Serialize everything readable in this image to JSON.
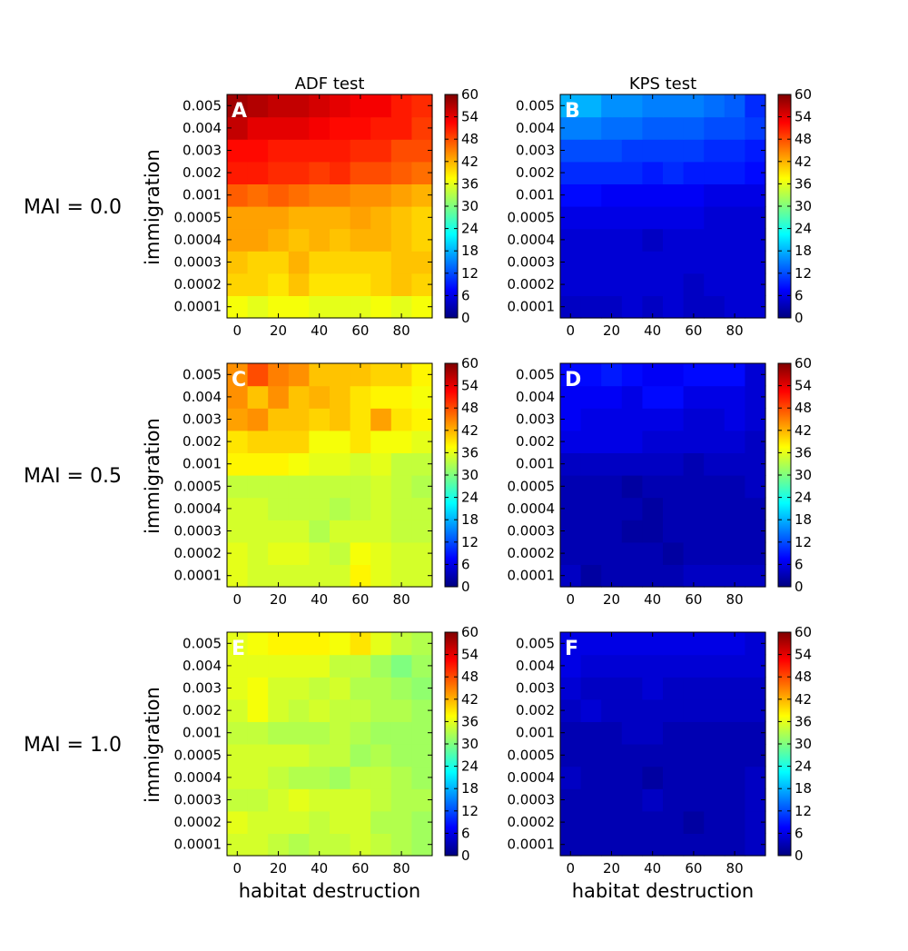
{
  "figure": {
    "column_titles": [
      "ADF test",
      "KPS test"
    ],
    "row_titles": [
      "MAI = 0.0",
      "MAI = 0.5",
      "MAI = 1.0"
    ],
    "xlabel": "habitat destruction",
    "ylabel": "immigration",
    "colormap": "jet",
    "colormap_stops": [
      "#00007f",
      "#0000ff",
      "#007fff",
      "#00ffff",
      "#7fff7f",
      "#ffff00",
      "#ff7f00",
      "#ff0000",
      "#7f0000"
    ]
  },
  "chart_data": [
    {
      "panel": "A",
      "type": "heatmap",
      "title": "ADF test",
      "row_label": "MAI = 0.0",
      "x": [
        0,
        10,
        20,
        30,
        40,
        50,
        60,
        70,
        80,
        90
      ],
      "y": [
        "0.0001",
        "0.0002",
        "0.0003",
        "0.0004",
        "0.0005",
        "0.001",
        "0.002",
        "0.003",
        "0.004",
        "0.005"
      ],
      "xticks": [
        0,
        20,
        40,
        60,
        80
      ],
      "xlabel": "",
      "ylabel": "immigration",
      "colorbar": {
        "min": 0,
        "max": 60,
        "ticks": [
          0,
          6,
          12,
          18,
          24,
          30,
          36,
          42,
          48,
          54,
          60
        ]
      },
      "values": [
        [
          37,
          36,
          37,
          37,
          36,
          36,
          36,
          37,
          36,
          37
        ],
        [
          40,
          40,
          39,
          41,
          39,
          39,
          39,
          40,
          41,
          40
        ],
        [
          41,
          40,
          40,
          42,
          40,
          40,
          40,
          40,
          41,
          41
        ],
        [
          43,
          43,
          42,
          41,
          42,
          41,
          42,
          42,
          41,
          40
        ],
        [
          43,
          43,
          43,
          42,
          42,
          42,
          43,
          42,
          41,
          40
        ],
        [
          47,
          46,
          47,
          46,
          45,
          45,
          44,
          44,
          43,
          42
        ],
        [
          51,
          51,
          50,
          50,
          49,
          50,
          48,
          48,
          47,
          46
        ],
        [
          52,
          52,
          51,
          51,
          51,
          51,
          50,
          50,
          48,
          48
        ],
        [
          56,
          54,
          54,
          54,
          53,
          52,
          52,
          51,
          51,
          49
        ],
        [
          58,
          57,
          56,
          56,
          55,
          54,
          53,
          53,
          51,
          50
        ]
      ]
    },
    {
      "panel": "B",
      "type": "heatmap",
      "title": "KPS test",
      "row_label": "MAI = 0.0",
      "x": [
        0,
        10,
        20,
        30,
        40,
        50,
        60,
        70,
        80,
        90
      ],
      "y": [
        "0.0001",
        "0.0002",
        "0.0003",
        "0.0004",
        "0.0005",
        "0.001",
        "0.002",
        "0.003",
        "0.004",
        "0.005"
      ],
      "xticks": [
        0,
        20,
        40,
        60,
        80
      ],
      "xlabel": "",
      "ylabel": "",
      "colorbar": {
        "min": 0,
        "max": 60,
        "ticks": [
          0,
          6,
          12,
          18,
          24,
          30,
          36,
          42,
          48,
          54,
          60
        ]
      },
      "values": [
        [
          4,
          4,
          4,
          5,
          4,
          5,
          4,
          4,
          5,
          5
        ],
        [
          5,
          5,
          5,
          5,
          5,
          5,
          4,
          5,
          5,
          5
        ],
        [
          5,
          5,
          5,
          5,
          5,
          5,
          5,
          5,
          5,
          5
        ],
        [
          5,
          5,
          5,
          5,
          4,
          5,
          5,
          5,
          5,
          5
        ],
        [
          6,
          6,
          6,
          6,
          6,
          6,
          6,
          5,
          5,
          5
        ],
        [
          8,
          8,
          7,
          7,
          7,
          7,
          7,
          6,
          6,
          6
        ],
        [
          10,
          10,
          10,
          10,
          9,
          10,
          9,
          9,
          9,
          8
        ],
        [
          12,
          12,
          12,
          11,
          11,
          11,
          11,
          10,
          10,
          9
        ],
        [
          15,
          15,
          14,
          14,
          13,
          13,
          13,
          12,
          12,
          11
        ],
        [
          18,
          18,
          16,
          16,
          15,
          15,
          15,
          14,
          13,
          10
        ]
      ]
    },
    {
      "panel": "C",
      "type": "heatmap",
      "title": "",
      "row_label": "MAI = 0.5",
      "x": [
        0,
        10,
        20,
        30,
        40,
        50,
        60,
        70,
        80,
        90
      ],
      "y": [
        "0.0001",
        "0.0002",
        "0.0003",
        "0.0004",
        "0.0005",
        "0.001",
        "0.002",
        "0.003",
        "0.004",
        "0.005"
      ],
      "xticks": [
        0,
        20,
        40,
        60,
        80
      ],
      "xlabel": "",
      "ylabel": "immigration",
      "colorbar": {
        "min": 0,
        "max": 60,
        "ticks": [
          0,
          6,
          12,
          18,
          24,
          30,
          36,
          42,
          48,
          54,
          60
        ]
      },
      "values": [
        [
          36,
          35,
          35,
          35,
          35,
          35,
          38,
          36,
          35,
          35
        ],
        [
          36,
          35,
          36,
          36,
          35,
          34,
          37,
          36,
          35,
          35
        ],
        [
          35,
          35,
          35,
          35,
          33,
          35,
          35,
          35,
          34,
          34
        ],
        [
          35,
          35,
          34,
          34,
          34,
          33,
          34,
          35,
          34,
          34
        ],
        [
          34,
          34,
          34,
          34,
          34,
          34,
          34,
          35,
          34,
          33
        ],
        [
          38,
          38,
          38,
          37,
          36,
          36,
          35,
          36,
          34,
          34
        ],
        [
          39,
          40,
          40,
          40,
          37,
          37,
          39,
          37,
          37,
          36
        ],
        [
          43,
          44,
          41,
          41,
          40,
          41,
          39,
          43,
          39,
          38
        ],
        [
          44,
          41,
          44,
          41,
          42,
          41,
          39,
          38,
          38,
          37
        ],
        [
          44,
          48,
          45,
          44,
          41,
          41,
          41,
          40,
          40,
          38
        ]
      ]
    },
    {
      "panel": "D",
      "type": "heatmap",
      "title": "",
      "row_label": "MAI = 0.5",
      "x": [
        0,
        10,
        20,
        30,
        40,
        50,
        60,
        70,
        80,
        90
      ],
      "y": [
        "0.0001",
        "0.0002",
        "0.0003",
        "0.0004",
        "0.0005",
        "0.001",
        "0.002",
        "0.003",
        "0.004",
        "0.005"
      ],
      "xticks": [
        0,
        20,
        40,
        60,
        80
      ],
      "xlabel": "",
      "ylabel": "",
      "colorbar": {
        "min": 0,
        "max": 60,
        "ticks": [
          0,
          6,
          12,
          18,
          24,
          30,
          36,
          42,
          48,
          54,
          60
        ]
      },
      "values": [
        [
          4,
          2,
          3,
          3,
          3,
          3,
          4,
          4,
          4,
          4
        ],
        [
          3,
          3,
          3,
          3,
          3,
          2,
          3,
          3,
          3,
          3
        ],
        [
          3,
          3,
          3,
          2,
          2,
          3,
          3,
          3,
          3,
          3
        ],
        [
          3,
          3,
          3,
          3,
          2,
          3,
          3,
          3,
          3,
          3
        ],
        [
          3,
          3,
          3,
          2,
          3,
          3,
          3,
          3,
          3,
          4
        ],
        [
          4,
          4,
          4,
          4,
          4,
          4,
          3,
          4,
          4,
          4
        ],
        [
          6,
          6,
          6,
          6,
          5,
          5,
          5,
          5,
          5,
          4
        ],
        [
          7,
          6,
          6,
          6,
          6,
          6,
          5,
          5,
          6,
          5
        ],
        [
          7,
          7,
          7,
          6,
          8,
          8,
          6,
          6,
          6,
          5
        ],
        [
          8,
          8,
          9,
          8,
          7,
          7,
          8,
          8,
          8,
          5
        ]
      ]
    },
    {
      "panel": "E",
      "type": "heatmap",
      "title": "",
      "row_label": "MAI = 1.0",
      "x": [
        0,
        10,
        20,
        30,
        40,
        50,
        60,
        70,
        80,
        90
      ],
      "y": [
        "0.0001",
        "0.0002",
        "0.0003",
        "0.0004",
        "0.0005",
        "0.001",
        "0.002",
        "0.003",
        "0.004",
        "0.005"
      ],
      "xticks": [
        0,
        20,
        40,
        60,
        80
      ],
      "xlabel": "habitat destruction",
      "ylabel": "immigration",
      "colorbar": {
        "min": 0,
        "max": 60,
        "ticks": [
          0,
          6,
          12,
          18,
          24,
          30,
          36,
          42,
          48,
          54,
          60
        ]
      },
      "values": [
        [
          35,
          35,
          34,
          33,
          34,
          34,
          35,
          34,
          33,
          32
        ],
        [
          36,
          35,
          35,
          35,
          34,
          35,
          35,
          33,
          33,
          32
        ],
        [
          34,
          34,
          35,
          36,
          35,
          35,
          35,
          34,
          33,
          33
        ],
        [
          35,
          35,
          34,
          33,
          33,
          32,
          34,
          34,
          33,
          32
        ],
        [
          35,
          35,
          35,
          35,
          34,
          34,
          32,
          33,
          32,
          32
        ],
        [
          34,
          34,
          33,
          33,
          33,
          34,
          33,
          32,
          32,
          32
        ],
        [
          35,
          37,
          35,
          34,
          35,
          34,
          34,
          33,
          33,
          32
        ],
        [
          36,
          37,
          35,
          35,
          34,
          35,
          33,
          33,
          32,
          31
        ],
        [
          36,
          36,
          36,
          36,
          36,
          34,
          34,
          32,
          30,
          32
        ],
        [
          36,
          37,
          38,
          38,
          38,
          37,
          39,
          36,
          34,
          33
        ]
      ]
    },
    {
      "panel": "F",
      "type": "heatmap",
      "title": "",
      "row_label": "MAI = 1.0",
      "x": [
        0,
        10,
        20,
        30,
        40,
        50,
        60,
        70,
        80,
        90
      ],
      "y": [
        "0.0001",
        "0.0002",
        "0.0003",
        "0.0004",
        "0.0005",
        "0.001",
        "0.002",
        "0.003",
        "0.004",
        "0.005"
      ],
      "xticks": [
        0,
        20,
        40,
        60,
        80
      ],
      "xlabel": "habitat destruction",
      "ylabel": "",
      "colorbar": {
        "min": 0,
        "max": 60,
        "ticks": [
          0,
          6,
          12,
          18,
          24,
          30,
          36,
          42,
          48,
          54,
          60
        ]
      },
      "values": [
        [
          3,
          3,
          3,
          3,
          3,
          3,
          3,
          3,
          3,
          4
        ],
        [
          3,
          3,
          3,
          3,
          3,
          3,
          2,
          3,
          3,
          4
        ],
        [
          3,
          3,
          3,
          3,
          4,
          3,
          3,
          3,
          3,
          4
        ],
        [
          4,
          3,
          3,
          3,
          2,
          3,
          3,
          3,
          3,
          4
        ],
        [
          3,
          3,
          3,
          3,
          3,
          3,
          3,
          3,
          3,
          3
        ],
        [
          3,
          3,
          3,
          4,
          4,
          3,
          3,
          3,
          3,
          3
        ],
        [
          4,
          5,
          4,
          4,
          4,
          4,
          4,
          4,
          4,
          4
        ],
        [
          5,
          4,
          4,
          4,
          5,
          4,
          4,
          4,
          4,
          4
        ],
        [
          6,
          5,
          5,
          5,
          5,
          5,
          5,
          5,
          5,
          5
        ],
        [
          6,
          6,
          6,
          6,
          6,
          6,
          6,
          6,
          6,
          5
        ]
      ]
    }
  ]
}
